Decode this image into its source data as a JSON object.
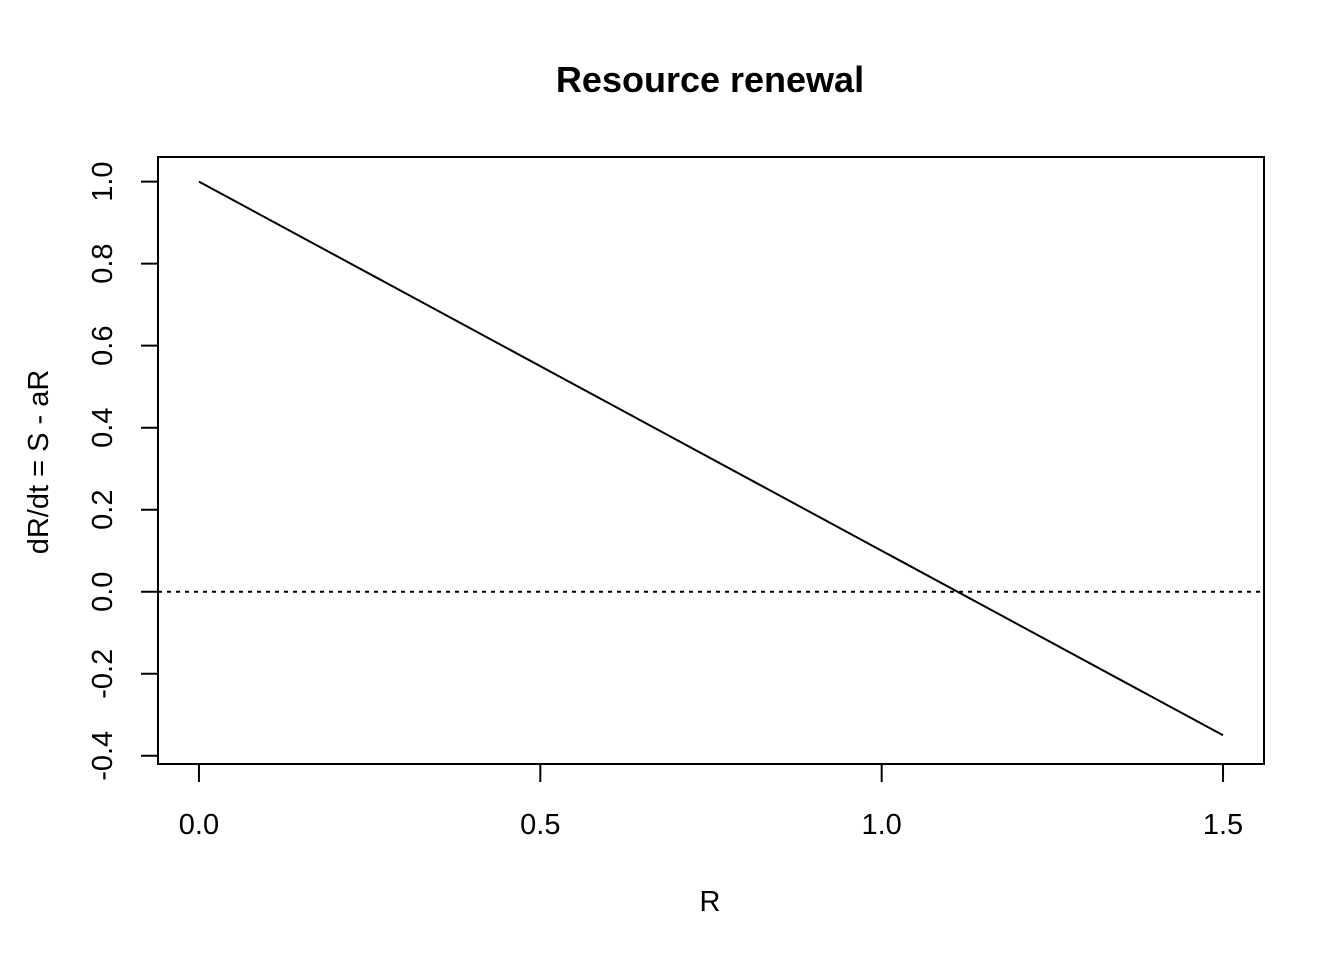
{
  "chart_data": {
    "type": "line",
    "title": "Resource renewal",
    "xlabel": "R",
    "ylabel": "dR/dt = S - aR",
    "xlim": [
      -0.06,
      1.56
    ],
    "ylim": [
      -0.42,
      1.06
    ],
    "xticks": [
      0.0,
      0.5,
      1.0,
      1.5
    ],
    "xtick_labels": [
      "0.0",
      "0.5",
      "1.0",
      "1.5"
    ],
    "yticks": [
      -0.4,
      -0.2,
      0.0,
      0.2,
      0.4,
      0.6,
      0.8,
      1.0
    ],
    "ytick_labels": [
      "-0.4",
      "-0.2",
      "0.0",
      "0.2",
      "0.4",
      "0.6",
      "0.8",
      "1.0"
    ],
    "grid": false,
    "series": [
      {
        "x": [
          0.0,
          1.5
        ],
        "y": [
          1.0,
          -0.35
        ],
        "style": "solid"
      }
    ],
    "reference_lines": [
      {
        "orientation": "horizontal",
        "y": 0.0,
        "style": "dotted"
      }
    ]
  }
}
